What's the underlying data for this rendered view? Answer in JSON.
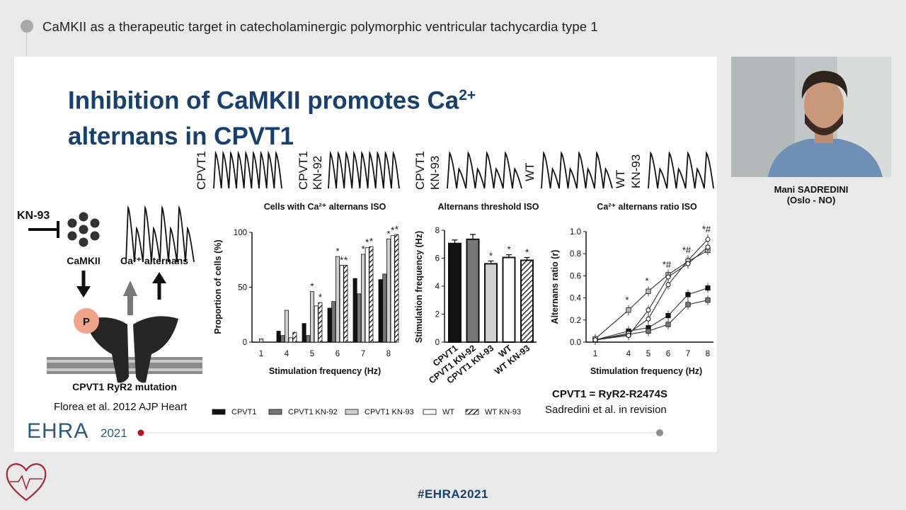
{
  "session": {
    "title": "CaMKII as a therapeutic target in catecholaminergic polymorphic ventricular tachycardia type 1"
  },
  "slide": {
    "title_line1": "Inhibition of CaMKII promotes Ca",
    "title_sup": "2+",
    "title_line2": "alternans in CPVT1",
    "trace_labels": [
      [
        "CPVT1"
      ],
      [
        "CPVT1",
        "KN-92"
      ],
      [
        "CPVT1",
        "KN-93"
      ],
      [
        "WT"
      ],
      [
        "WT",
        "KN-93"
      ]
    ],
    "schematic": {
      "inhibitor": "KN-93",
      "kinase": "CaMKII",
      "alternans": "Ca²⁺ alternans",
      "phospho": "P",
      "caption": "CPVT1 RyR2 mutation",
      "citation": "Florea et al. 2012 AJP Heart"
    },
    "legend": [
      "CPVT1",
      "CPVT1 KN-92",
      "CPVT1 KN-93",
      "WT",
      "WT KN-93"
    ],
    "definition": "CPVT1 = RyR2-R2474S",
    "citation2": "Sadredini et al. in revision",
    "logo_main": "EHRA",
    "logo_year": "2021"
  },
  "speaker": {
    "name": "Mani SADREDINI",
    "affiliation": "(Oslo - NO)"
  },
  "footer": {
    "hashtag": "#EHRA2021"
  },
  "colors": {
    "title_blue": "#17406d",
    "logo_red": "#b5121b"
  },
  "chart_data": [
    {
      "type": "bar",
      "title": "Cells with Ca²⁺ alternans ISO",
      "xlabel": "Stimulation frequency (Hz)",
      "ylabel": "Proportion of cells (%)",
      "ylim": [
        0,
        100
      ],
      "yticks": [
        0,
        50,
        100
      ],
      "categories": [
        "1",
        "4",
        "5",
        "6",
        "7",
        "8"
      ],
      "series": [
        {
          "name": "CPVT1",
          "values": [
            0,
            10,
            17,
            31,
            58,
            57
          ]
        },
        {
          "name": "CPVT1 KN-92",
          "values": [
            0,
            6,
            6,
            37,
            44,
            62
          ]
        },
        {
          "name": "CPVT1 KN-93",
          "values": [
            3,
            29,
            46,
            78,
            80,
            94
          ]
        },
        {
          "name": "WT",
          "values": [
            0,
            4,
            33,
            70,
            86,
            97
          ]
        },
        {
          "name": "WT KN-93",
          "values": [
            0,
            9,
            36,
            70,
            87,
            98
          ]
        }
      ],
      "significance": [
        {
          "category": "5",
          "series": "CPVT1 KN-93",
          "mark": "*"
        },
        {
          "category": "5",
          "series": "WT KN-93",
          "mark": "*"
        },
        {
          "category": "6",
          "series": "CPVT1 KN-93",
          "mark": "*"
        },
        {
          "category": "6",
          "series": "WT",
          "mark": "*"
        },
        {
          "category": "6",
          "series": "WT KN-93",
          "mark": "*"
        },
        {
          "category": "7",
          "series": "CPVT1 KN-93",
          "mark": "*"
        },
        {
          "category": "7",
          "series": "WT",
          "mark": "*"
        },
        {
          "category": "7",
          "series": "WT KN-93",
          "mark": "*"
        },
        {
          "category": "8",
          "series": "CPVT1 KN-93",
          "mark": "*"
        },
        {
          "category": "8",
          "series": "WT",
          "mark": "*"
        },
        {
          "category": "8",
          "series": "WT KN-93",
          "mark": "*"
        }
      ]
    },
    {
      "type": "bar",
      "title": "Alternans threshold ISO",
      "ylabel": "Stimulation frequency (Hz)",
      "ylim": [
        0,
        8
      ],
      "yticks": [
        0,
        2,
        4,
        6,
        8
      ],
      "categories": [
        "CPVT1",
        "CPVT1 KN-92",
        "CPVT1 KN-93",
        "WT",
        "WT KN-93"
      ],
      "values": [
        7.05,
        7.35,
        5.6,
        6.05,
        5.85
      ],
      "errors": [
        0.25,
        0.35,
        0.2,
        0.2,
        0.2
      ],
      "significance": [
        "",
        "",
        "*",
        "*",
        "*"
      ]
    },
    {
      "type": "line",
      "title": "Ca²⁺ alternans ratio ISO",
      "xlabel": "Stimulation frequency (Hz)",
      "ylabel": "Alternans ratio (r)",
      "x": [
        1,
        4,
        5,
        6,
        7,
        8
      ],
      "xticks": [
        1,
        4,
        5,
        6,
        7,
        8
      ],
      "ylim": [
        0,
        1.0
      ],
      "yticks": [
        0.0,
        0.2,
        0.4,
        0.6,
        0.8,
        1.0
      ],
      "series": [
        {
          "name": "CPVT1",
          "values": [
            0.02,
            0.1,
            0.13,
            0.24,
            0.43,
            0.49
          ]
        },
        {
          "name": "CPVT1 KN-92",
          "values": [
            0.02,
            0.07,
            0.1,
            0.16,
            0.34,
            0.38
          ]
        },
        {
          "name": "CPVT1 KN-93",
          "values": [
            0.03,
            0.29,
            0.46,
            0.61,
            0.73,
            0.83
          ]
        },
        {
          "name": "WT",
          "values": [
            0.02,
            0.08,
            0.21,
            0.52,
            0.74,
            0.93
          ]
        },
        {
          "name": "WT KN-93",
          "values": [
            0.02,
            0.06,
            0.29,
            0.59,
            0.71,
            0.86
          ]
        }
      ],
      "significance": [
        "",
        "*",
        "*",
        "*#",
        "*#",
        "*#"
      ]
    }
  ]
}
